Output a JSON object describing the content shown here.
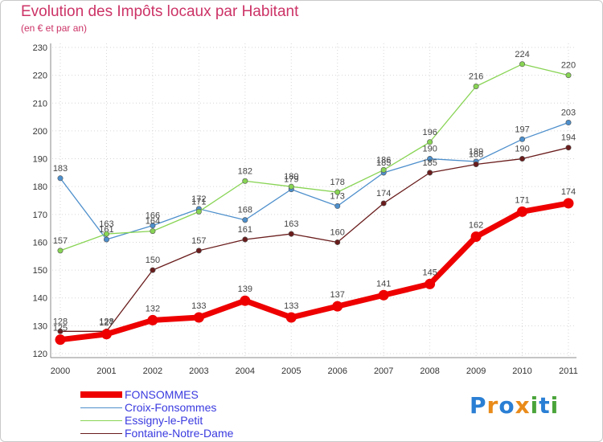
{
  "title": "Evolution des Impôts locaux par Habitant",
  "subtitle": "(en € et par an)",
  "logo": {
    "text": "Proxiti",
    "colors": [
      "#2a7fd4",
      "#e98b1a",
      "#4aa43a"
    ]
  },
  "chart_data": {
    "type": "line",
    "title": "Evolution des Impôts locaux par Habitant",
    "subtitle": "(en € et par an)",
    "xlabel": "",
    "ylabel": "",
    "x": [
      "2000",
      "2001",
      "2002",
      "2003",
      "2004",
      "2005",
      "2006",
      "2007",
      "2008",
      "2009",
      "2010",
      "2011"
    ],
    "ylim": [
      120,
      230
    ],
    "yticks": [
      120,
      130,
      140,
      150,
      160,
      170,
      180,
      190,
      200,
      210,
      220,
      230
    ],
    "grid": true,
    "legend_position": "bottom-left",
    "series": [
      {
        "name": "FONSOMMES",
        "color": "#ee0000",
        "values": [
          125,
          127,
          132,
          133,
          139,
          133,
          137,
          141,
          145,
          162,
          171,
          174
        ]
      },
      {
        "name": "Croix-Fonsommes",
        "color": "#4d8fcc",
        "values": [
          183,
          161,
          166,
          172,
          168,
          179,
          173,
          185,
          190,
          189,
          197,
          203
        ]
      },
      {
        "name": "Essigny-le-Petit",
        "color": "#88d454",
        "values": [
          157,
          163,
          164,
          171,
          182,
          180,
          178,
          186,
          196,
          216,
          224,
          220
        ]
      },
      {
        "name": "Fontaine-Notre-Dame",
        "color": "#6a1c1c",
        "values": [
          128,
          128,
          150,
          157,
          161,
          163,
          160,
          174,
          185,
          188,
          190,
          194
        ]
      }
    ]
  }
}
